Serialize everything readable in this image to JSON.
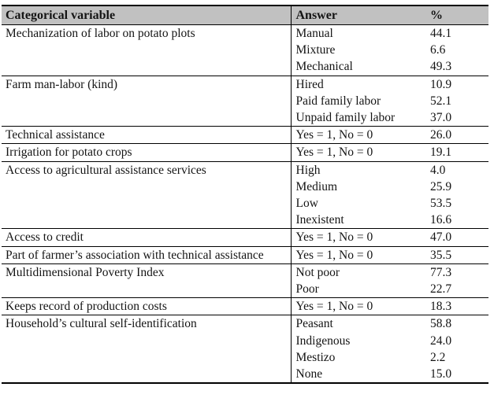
{
  "colors": {
    "header_bg": "#c1c1c1",
    "border": "#000000",
    "text": "#141414",
    "page_bg": "#ffffff"
  },
  "table": {
    "headers": [
      "Categorical variable",
      "Answer",
      "%"
    ],
    "rows": [
      {
        "variable": "Mechanization of labor on potato plots",
        "answers": [
          {
            "label": "Manual",
            "pct": "44.1"
          },
          {
            "label": "Mixture",
            "pct": "6.6"
          },
          {
            "label": "Mechanical",
            "pct": "49.3"
          }
        ]
      },
      {
        "variable": "Farm man-labor (kind)",
        "answers": [
          {
            "label": "Hired",
            "pct": "10.9"
          },
          {
            "label": "Paid family labor",
            "pct": "52.1"
          },
          {
            "label": "Unpaid family labor",
            "pct": "37.0"
          }
        ]
      },
      {
        "variable": "Technical assistance",
        "answers": [
          {
            "label": "Yes = 1, No = 0",
            "pct": "26.0"
          }
        ]
      },
      {
        "variable": "Irrigation for potato crops",
        "answers": [
          {
            "label": "Yes = 1, No = 0",
            "pct": "19.1"
          }
        ]
      },
      {
        "variable": "Access to agricultural assistance services",
        "answers": [
          {
            "label": "High",
            "pct": "4.0"
          },
          {
            "label": "Medium",
            "pct": "25.9"
          },
          {
            "label": "Low",
            "pct": "53.5"
          },
          {
            "label": "Inexistent",
            "pct": "16.6"
          }
        ]
      },
      {
        "variable": "Access to credit",
        "answers": [
          {
            "label": "Yes = 1, No = 0",
            "pct": "47.0"
          }
        ]
      },
      {
        "variable": "Part of farmer’s association with technical assistance",
        "answers": [
          {
            "label": "Yes = 1, No = 0",
            "pct": "35.5"
          }
        ]
      },
      {
        "variable": "Multidimensional Poverty Index",
        "answers": [
          {
            "label": "Not poor",
            "pct": "77.3"
          },
          {
            "label": "Poor",
            "pct": "22.7"
          }
        ]
      },
      {
        "variable": "Keeps record of production costs",
        "answers": [
          {
            "label": "Yes = 1, No = 0",
            "pct": "18.3"
          }
        ]
      },
      {
        "variable": "Household’s cultural self-identification",
        "answers": [
          {
            "label": "Peasant",
            "pct": "58.8"
          },
          {
            "label": "Indigenous",
            "pct": "24.0"
          },
          {
            "label": "Mestizo",
            "pct": "2.2"
          },
          {
            "label": "None",
            "pct": "15.0"
          }
        ]
      }
    ]
  },
  "chart_data": {
    "type": "table",
    "columns": [
      "Categorical variable",
      "Answer",
      "%"
    ],
    "rows": [
      [
        "Mechanization of labor on potato plots",
        "Manual",
        44.1
      ],
      [
        "",
        "Mixture",
        6.6
      ],
      [
        "",
        "Mechanical",
        49.3
      ],
      [
        "Farm man-labor (kind)",
        "Hired",
        10.9
      ],
      [
        "",
        "Paid family labor",
        52.1
      ],
      [
        "",
        "Unpaid family labor",
        37.0
      ],
      [
        "Technical assistance",
        "Yes = 1, No = 0",
        26.0
      ],
      [
        "Irrigation for potato crops",
        "Yes = 1, No = 0",
        19.1
      ],
      [
        "Access to agricultural assistance services",
        "High",
        4.0
      ],
      [
        "",
        "Medium",
        25.9
      ],
      [
        "",
        "Low",
        53.5
      ],
      [
        "",
        "Inexistent",
        16.6
      ],
      [
        "Access to credit",
        "Yes = 1, No = 0",
        47.0
      ],
      [
        "Part of farmer’s association with technical assistance",
        "Yes = 1, No = 0",
        35.5
      ],
      [
        "Multidimensional Poverty Index",
        "Not poor",
        77.3
      ],
      [
        "",
        "Poor",
        22.7
      ],
      [
        "Keeps record of production costs",
        "Yes = 1, No = 0",
        18.3
      ],
      [
        "Household’s cultural self-identification",
        "Peasant",
        58.8
      ],
      [
        "",
        "Indigenous",
        24.0
      ],
      [
        "",
        "Mestizo",
        2.2
      ],
      [
        "",
        "None",
        15.0
      ]
    ]
  }
}
